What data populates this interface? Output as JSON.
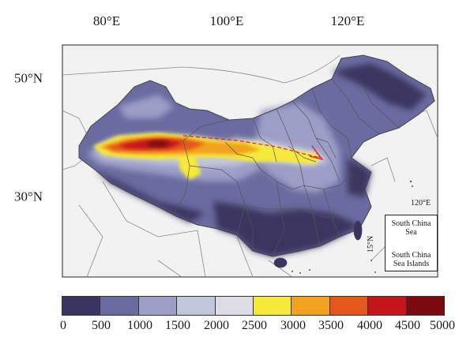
{
  "map": {
    "longitude_labels": [
      "80°E",
      "100°E",
      "120°E"
    ],
    "latitude_labels": [
      "50°N",
      "30°N"
    ]
  },
  "legend": {
    "colors": [
      "#3a3560",
      "#6a6ba0",
      "#9c9ec8",
      "#c1c7da",
      "#dcdbe6",
      "#f6e93a",
      "#f2a21f",
      "#e5561d",
      "#c5141a",
      "#7a0a10"
    ],
    "ticks": [
      "0",
      "500",
      "1000",
      "1500",
      "2000",
      "2500",
      "3000",
      "3500",
      "4000",
      "4500",
      "5000"
    ]
  },
  "inset": {
    "lon_label": "120°E",
    "lat_label": "15°N",
    "sea_label": "South China Sea",
    "islands_label": "South China Sea Islands"
  },
  "colors": {
    "land_background": "#f2f2f2",
    "border_line": "#666666",
    "track": "#e0202a"
  }
}
